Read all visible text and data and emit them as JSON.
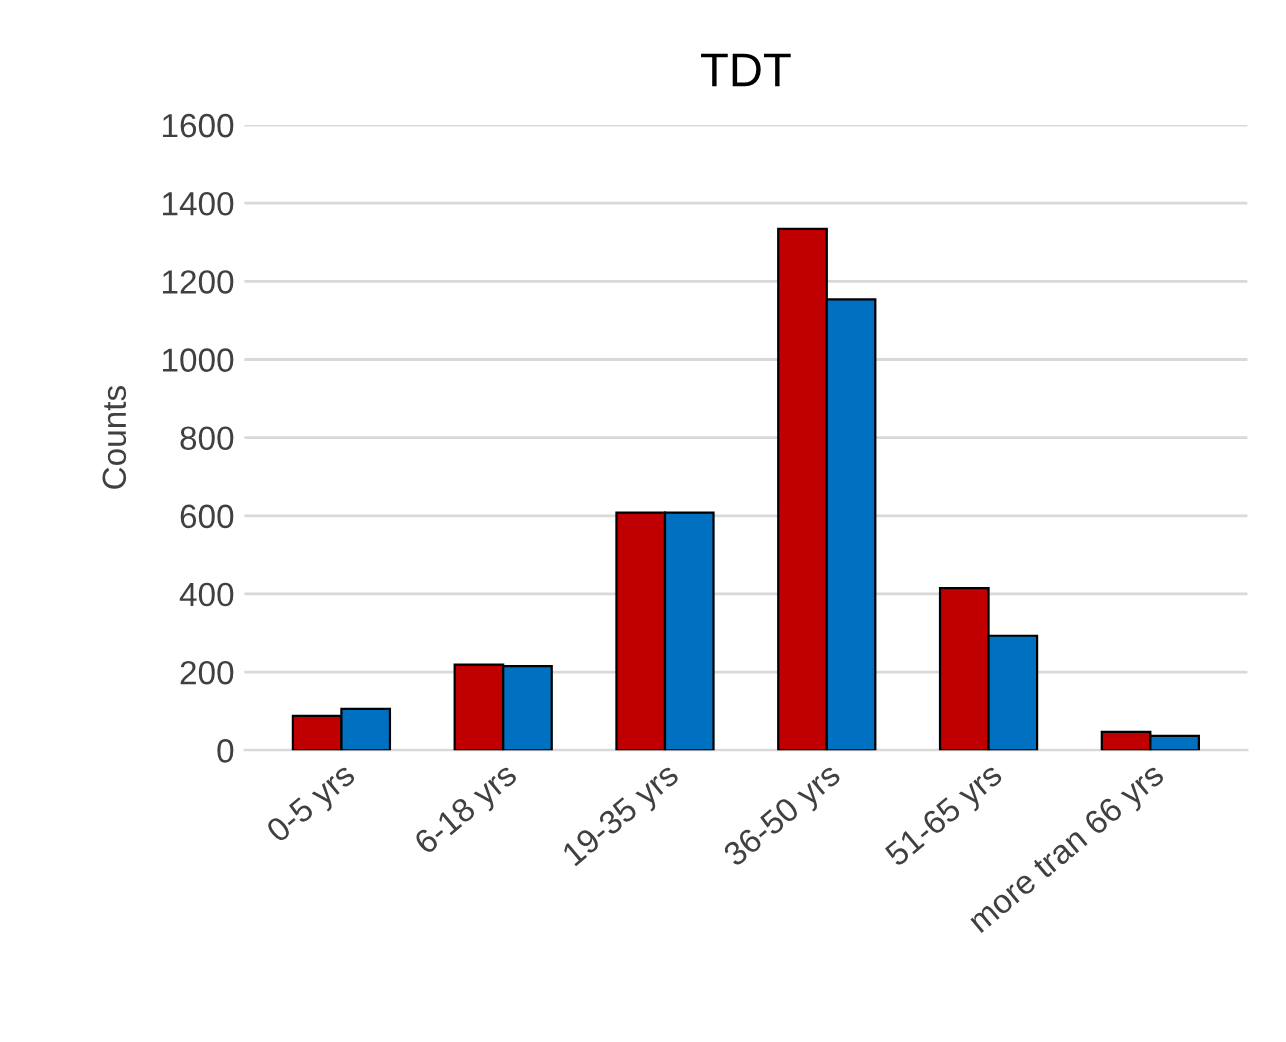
{
  "chart_data": {
    "type": "bar",
    "title": "TDT",
    "ylabel": "Counts",
    "categories": [
      "0-5 yrs",
      "6-18 yrs",
      "19-35 yrs",
      "36-50 yrs",
      "51-65 yrs",
      "more tran 66 yrs"
    ],
    "series": [
      {
        "color": "#c00000",
        "values": [
          88,
          219,
          608,
          1334,
          415,
          47
        ]
      },
      {
        "color": "#0070c0",
        "values": [
          106,
          215,
          608,
          1154,
          293,
          37
        ]
      }
    ],
    "ylim": [
      0,
      1600
    ],
    "yticks": [
      0,
      200,
      400,
      600,
      800,
      1000,
      1200,
      1400,
      1600
    ],
    "grid": "y"
  }
}
